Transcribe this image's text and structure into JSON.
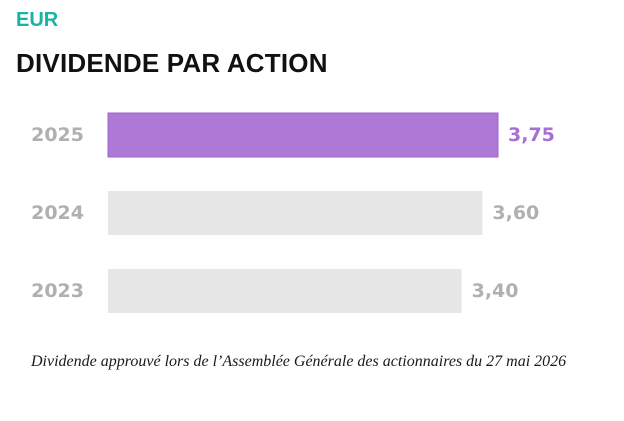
{
  "header": {
    "currency": "EUR",
    "title": "DIVIDENDE PAR ACTION"
  },
  "chart_data": {
    "type": "bar",
    "orientation": "horizontal",
    "categories": [
      "2025",
      "2024",
      "2023"
    ],
    "values": [
      3.75,
      3.6,
      3.4
    ],
    "value_labels": [
      "3,75",
      "3,60",
      "3,40"
    ],
    "highlight_category": "2025",
    "colors": {
      "highlight": "#ad78d6",
      "default": "#e6e6e6",
      "highlight_label": "#a86fd3",
      "label": "#b0b0b0"
    },
    "title": "DIVIDENDE PAR ACTION",
    "xlabel": "",
    "ylabel": "",
    "grid": false,
    "legend": "none"
  },
  "footnote": "Dividende approuvé lors de l’Assemblée Générale des actionnaires du 27 mai 2026"
}
